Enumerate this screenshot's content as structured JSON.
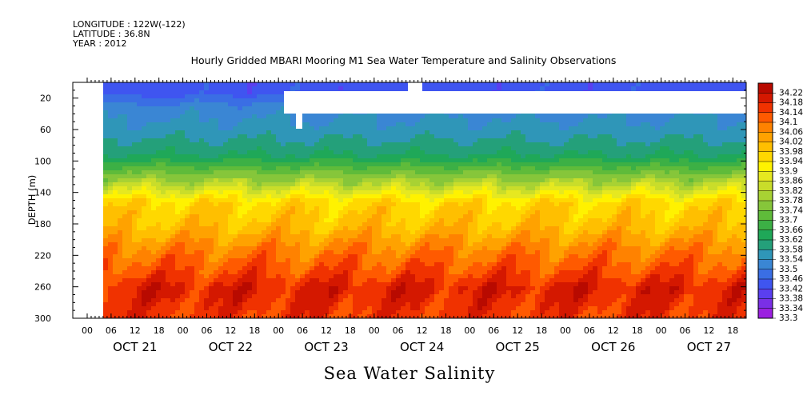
{
  "header": {
    "longitude": "LONGITUDE : 122W(-122)",
    "latitude": "LATITUDE : 36.8N",
    "year": "YEAR : 2012"
  },
  "footer_title": "Sea Water Salinity",
  "chart_data": {
    "type": "heatmap",
    "title": "Hourly Gridded MBARI Mooring M1 Sea Water Temperature and Salinity Observations",
    "ylabel": "DEPTH (m)",
    "xlabel": "",
    "y_inverted": true,
    "ylim": [
      300,
      0
    ],
    "y_ticks": [
      20,
      60,
      100,
      140,
      180,
      220,
      260,
      300
    ],
    "x_tick_hours": [
      "00",
      "06",
      "12",
      "18",
      "00",
      "06",
      "12",
      "18",
      "00",
      "06",
      "12",
      "18",
      "00",
      "06",
      "12",
      "18",
      "00",
      "06",
      "12",
      "18",
      "00",
      "06",
      "12",
      "18",
      "00",
      "06",
      "12",
      "18"
    ],
    "x_day_labels": [
      "OCT 21",
      "OCT 22",
      "OCT 23",
      "OCT 24",
      "OCT 25",
      "OCT 26",
      "OCT 27"
    ],
    "colorbar": {
      "levels": [
        33.3,
        33.34,
        33.38,
        33.42,
        33.46,
        33.5,
        33.54,
        33.58,
        33.62,
        33.66,
        33.7,
        33.74,
        33.78,
        33.82,
        33.86,
        33.9,
        33.94,
        33.98,
        34.02,
        34.06,
        34.1,
        34.14,
        34.18,
        34.22
      ],
      "labels": [
        "33.3",
        "33.34",
        "33.38",
        "33.42",
        "33.46",
        "33.5",
        "33.54",
        "33.58",
        "33.62",
        "33.66",
        "33.7",
        "33.74",
        "33.78",
        "33.82",
        "33.86",
        "33.9",
        "33.94",
        "33.98",
        "34.02",
        "34.06",
        "34.1",
        "34.14",
        "34.18",
        "34.22"
      ],
      "colors": [
        "#9b1fe0",
        "#7a2fe6",
        "#5a3ff0",
        "#3f55f0",
        "#3a6ee4",
        "#3a86d4",
        "#2f96b8",
        "#24a07a",
        "#1fa858",
        "#3cb045",
        "#5fbb3a",
        "#86c63a",
        "#a8d233",
        "#c9dd2a",
        "#e6e820",
        "#fff200",
        "#ffd800",
        "#ffbf00",
        "#ffa200",
        "#ff8200",
        "#ff5a00",
        "#f03200",
        "#d41800",
        "#b80a00"
      ]
    },
    "depth_profile": [
      {
        "depth": 10,
        "salinity": 33.44
      },
      {
        "depth": 30,
        "salinity": 33.52
      },
      {
        "depth": 60,
        "salinity": 33.56
      },
      {
        "depth": 90,
        "salinity": 33.62
      },
      {
        "depth": 120,
        "salinity": 33.78
      },
      {
        "depth": 150,
        "salinity": 33.96
      },
      {
        "depth": 180,
        "salinity": 34.0
      },
      {
        "depth": 210,
        "salinity": 34.08
      },
      {
        "depth": 240,
        "salinity": 34.14
      },
      {
        "depth": 260,
        "salinity": 34.19
      },
      {
        "depth": 300,
        "salinity": 34.15
      }
    ],
    "missing_data": "blank before OCT 21 00 (all depths) and near-surface band from about OCT 23 00 onward"
  }
}
